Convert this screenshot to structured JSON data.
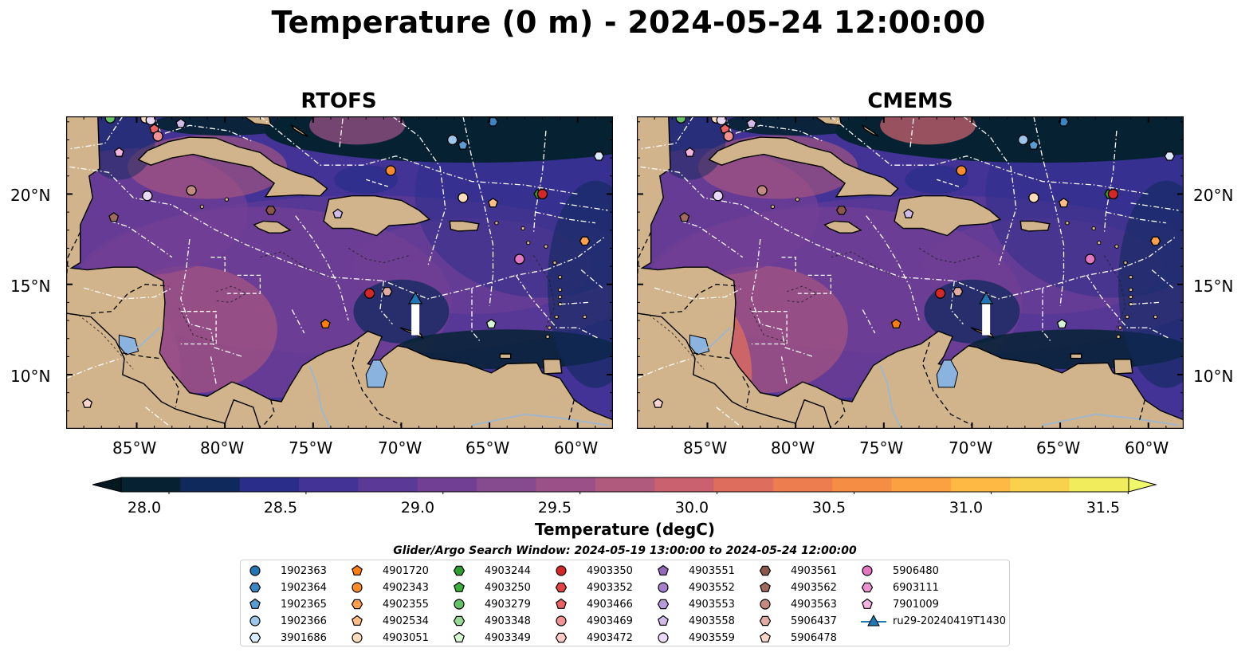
{
  "figure": {
    "title": "Temperature (0 m) - 2024-05-24 12:00:00",
    "panels": [
      {
        "title": "RTOFS"
      },
      {
        "title": "CMEMS"
      }
    ]
  },
  "axes": {
    "lon_ticks": [
      "85°W",
      "80°W",
      "75°W",
      "70°W",
      "65°W",
      "60°W"
    ],
    "lat_ticks": [
      "20°N",
      "15°N",
      "10°N"
    ]
  },
  "colorbar": {
    "label": "Temperature (degC)",
    "ticks": [
      "28.0",
      "28.5",
      "29.0",
      "29.5",
      "30.0",
      "30.5",
      "31.0",
      "31.5"
    ],
    "colors": [
      "#062232",
      "#10295d",
      "#2a2e8a",
      "#433397",
      "#5b3a97",
      "#713f94",
      "#864a8e",
      "#9b5188",
      "#b05a7d",
      "#c9626e",
      "#de6d5e",
      "#ed7d4e",
      "#f68d45",
      "#fba142",
      "#fdb944",
      "#f9d24d",
      "#f1ec5b"
    ],
    "under_color": "#041820",
    "over_color": "#f0f96a"
  },
  "map_colors": {
    "land": "#d2b48c",
    "lakes": "#8bb3e0",
    "rivers": "#9fb6cc",
    "eez_line": "#ffffff"
  },
  "legend": {
    "title": "Glider/Argo Search Window: 2024-05-19 13:00:00 to 2024-05-24 12:00:00",
    "entries": [
      {
        "label": "1902363",
        "marker": "circle",
        "color": "#1f77b4"
      },
      {
        "label": "1902364",
        "marker": "hexagon",
        "color": "#3a86c4"
      },
      {
        "label": "1902365",
        "marker": "pentagon",
        "color": "#5a9bd4"
      },
      {
        "label": "1902366",
        "marker": "circle",
        "color": "#9ec5ea"
      },
      {
        "label": "3901686",
        "marker": "hexagon",
        "color": "#dcecff"
      },
      {
        "label": "4901720",
        "marker": "pentagon",
        "color": "#ff7f0e"
      },
      {
        "label": "4902343",
        "marker": "circle",
        "color": "#ff8c2a"
      },
      {
        "label": "4902355",
        "marker": "hexagon",
        "color": "#ffa04d"
      },
      {
        "label": "4902534",
        "marker": "pentagon",
        "color": "#ffbe85"
      },
      {
        "label": "4903051",
        "marker": "circle",
        "color": "#ffdcbc"
      },
      {
        "label": "4903244",
        "marker": "hexagon",
        "color": "#2ca02c"
      },
      {
        "label": "4903250",
        "marker": "pentagon",
        "color": "#3cae3c"
      },
      {
        "label": "4903279",
        "marker": "circle",
        "color": "#66c266"
      },
      {
        "label": "4903348",
        "marker": "hexagon",
        "color": "#98d998"
      },
      {
        "label": "4903349",
        "marker": "pentagon",
        "color": "#d5f5d5"
      },
      {
        "label": "4903350",
        "marker": "circle",
        "color": "#d62728"
      },
      {
        "label": "4903352",
        "marker": "hexagon",
        "color": "#e04444"
      },
      {
        "label": "4903466",
        "marker": "pentagon",
        "color": "#ea6262"
      },
      {
        "label": "4903469",
        "marker": "circle",
        "color": "#f29393"
      },
      {
        "label": "4903472",
        "marker": "hexagon",
        "color": "#fbcaca"
      },
      {
        "label": "4903551",
        "marker": "pentagon",
        "color": "#9467bd"
      },
      {
        "label": "4903552",
        "marker": "circle",
        "color": "#a680cc"
      },
      {
        "label": "4903553",
        "marker": "hexagon",
        "color": "#b99adb"
      },
      {
        "label": "4903558",
        "marker": "pentagon",
        "color": "#d1bbe9"
      },
      {
        "label": "4903559",
        "marker": "circle",
        "color": "#ead9f7"
      },
      {
        "label": "4903561",
        "marker": "hexagon",
        "color": "#8c564b"
      },
      {
        "label": "4903562",
        "marker": "pentagon",
        "color": "#a06b5f"
      },
      {
        "label": "4903563",
        "marker": "circle",
        "color": "#c28a80"
      },
      {
        "label": "5906437",
        "marker": "hexagon",
        "color": "#e0aba2"
      },
      {
        "label": "5906478",
        "marker": "pentagon",
        "color": "#f8d5cd"
      },
      {
        "label": "5906480",
        "marker": "circle",
        "color": "#e377c2"
      },
      {
        "label": "6903111",
        "marker": "hexagon",
        "color": "#ea92d1"
      },
      {
        "label": "7901009",
        "marker": "pentagon",
        "color": "#f3b5e0"
      },
      {
        "label": "ru29-20240419T1430",
        "marker": "glider",
        "color": "#1f77b4"
      }
    ]
  },
  "floats": [
    {
      "lon": -86.5,
      "lat": 24.2,
      "color": "#66c266",
      "marker": "circle"
    },
    {
      "lon": -84.5,
      "lat": 24.2,
      "color": "#ffdcbc",
      "marker": "circle"
    },
    {
      "lon": -84.2,
      "lat": 24.1,
      "color": "#ead9f7",
      "marker": "circle"
    },
    {
      "lon": -84.0,
      "lat": 23.6,
      "color": "#ea6262",
      "marker": "pentagon"
    },
    {
      "lon": -83.8,
      "lat": 23.2,
      "color": "#f29393",
      "marker": "circle"
    },
    {
      "lon": -82.5,
      "lat": 23.9,
      "color": "#d1bbe9",
      "marker": "pentagon"
    },
    {
      "lon": -86.0,
      "lat": 22.3,
      "color": "#f3b5e0",
      "marker": "pentagon"
    },
    {
      "lon": -84.4,
      "lat": 19.9,
      "color": "#ead9f7",
      "marker": "circle"
    },
    {
      "lon": -81.9,
      "lat": 20.2,
      "color": "#c28a80",
      "marker": "circle"
    },
    {
      "lon": -86.3,
      "lat": 18.7,
      "color": "#a06b5f",
      "marker": "pentagon"
    },
    {
      "lon": -77.4,
      "lat": 19.1,
      "color": "#8c564b",
      "marker": "hexagon"
    },
    {
      "lon": -73.6,
      "lat": 18.9,
      "color": "#d1bbe9",
      "marker": "pentagon"
    },
    {
      "lon": -70.6,
      "lat": 21.3,
      "color": "#ff8c2a",
      "marker": "circle"
    },
    {
      "lon": -67.1,
      "lat": 23.0,
      "color": "#9ec5ea",
      "marker": "circle"
    },
    {
      "lon": -66.5,
      "lat": 22.7,
      "color": "#5a9bd4",
      "marker": "pentagon"
    },
    {
      "lon": -64.8,
      "lat": 24.0,
      "color": "#3a86c4",
      "marker": "hexagon"
    },
    {
      "lon": -58.8,
      "lat": 22.1,
      "color": "#dcecff",
      "marker": "hexagon"
    },
    {
      "lon": -66.5,
      "lat": 19.8,
      "color": "#ffdcbc",
      "marker": "circle"
    },
    {
      "lon": -64.8,
      "lat": 19.5,
      "color": "#ffbe85",
      "marker": "pentagon"
    },
    {
      "lon": -62.2,
      "lat": 20.0,
      "color": "#2ca02c",
      "marker": "hexagon"
    },
    {
      "lon": -62.0,
      "lat": 20.0,
      "color": "#d62728",
      "marker": "circle"
    },
    {
      "lon": -59.6,
      "lat": 17.4,
      "color": "#ffa04d",
      "marker": "hexagon"
    },
    {
      "lon": -63.3,
      "lat": 16.4,
      "color": "#e377c2",
      "marker": "circle"
    },
    {
      "lon": -71.8,
      "lat": 14.5,
      "color": "#d62728",
      "marker": "circle"
    },
    {
      "lon": -70.8,
      "lat": 14.6,
      "color": "#e0aba2",
      "marker": "hexagon"
    },
    {
      "lon": -74.3,
      "lat": 12.8,
      "color": "#ff7f0e",
      "marker": "pentagon"
    },
    {
      "lon": -64.9,
      "lat": 12.8,
      "color": "#d5f5d5",
      "marker": "pentagon"
    },
    {
      "lon": -87.8,
      "lat": 8.4,
      "color": "#f8d5cd",
      "marker": "pentagon"
    }
  ],
  "glider": {
    "lon": -69.2,
    "lat": 14.2,
    "tail_lat": 12.8,
    "color": "#1f77b4"
  }
}
